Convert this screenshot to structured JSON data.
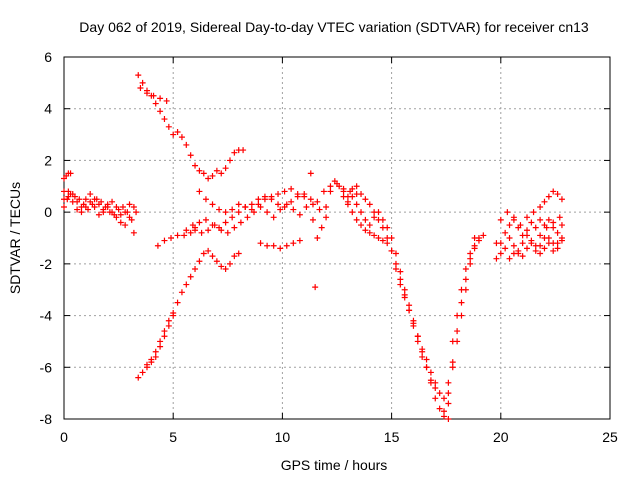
{
  "chart_data": {
    "type": "scatter",
    "title": "Day 062 of 2019, Sidereal Day-to-day VTEC variation (SDTVAR) for receiver cn13",
    "xlabel": "GPS time / hours",
    "ylabel": "SDTVAR / TECUs",
    "xlim": [
      0,
      25
    ],
    "ylim": [
      -8,
      6
    ],
    "xticks": [
      "0",
      "5",
      "10",
      "15",
      "20",
      "25"
    ],
    "yticks": [
      "6",
      "4",
      "2",
      "0",
      "-2",
      "-4",
      "-6",
      "-8"
    ],
    "xtick_values": [
      0,
      5,
      10,
      15,
      20,
      25
    ],
    "ytick_values": [
      6,
      4,
      2,
      0,
      -2,
      -4,
      -6,
      -8
    ],
    "grid": true,
    "marker": "+",
    "color": "#ff0000",
    "series": [
      {
        "x": [
          0.0,
          0.15,
          0.3,
          0.5,
          0.7,
          0.9,
          1.1,
          1.3,
          1.5,
          1.7,
          1.9,
          2.1,
          2.3,
          2.5,
          2.7,
          2.9,
          3.1,
          3.3
        ],
        "y": [
          0.2,
          0.5,
          0.7,
          0.6,
          0.5,
          0.3,
          0.1,
          0.3,
          0.5,
          0.4,
          0.2,
          0.0,
          -0.1,
          0.1,
          0.2,
          0.0,
          -0.3,
          0.0
        ]
      },
      {
        "x": [
          0.0,
          0.2,
          0.4,
          0.6,
          0.8,
          1.0,
          1.2,
          1.4,
          1.6,
          1.8,
          2.0,
          2.2,
          2.4,
          2.6,
          2.8,
          3.0,
          3.2
        ],
        "y": [
          0.5,
          0.8,
          0.7,
          0.4,
          0.2,
          0.5,
          0.7,
          0.5,
          0.3,
          0.1,
          0.3,
          0.4,
          0.2,
          -0.1,
          0.0,
          0.3,
          0.2
        ]
      },
      {
        "x": [
          0.0,
          0.2,
          0.4,
          0.6,
          0.8,
          1.0,
          1.2,
          1.4,
          1.6,
          1.8,
          2.0,
          2.2,
          2.4,
          2.6,
          2.8,
          3.0,
          3.2
        ],
        "y": [
          0.8,
          0.6,
          0.4,
          0.1,
          0.0,
          0.2,
          0.4,
          0.2,
          -0.1,
          0.0,
          0.2,
          0.0,
          -0.2,
          -0.4,
          -0.5,
          -0.2,
          -0.8
        ]
      },
      {
        "x": [
          0.0,
          0.1,
          0.2,
          0.3
        ],
        "y": [
          1.3,
          1.4,
          1.5,
          1.5
        ]
      },
      {
        "x": [
          3.4,
          3.6,
          3.8,
          4.0,
          4.2,
          4.4,
          4.6,
          4.8,
          5.0,
          5.2,
          5.4,
          5.6,
          5.8,
          6.0,
          6.2,
          6.4,
          6.6,
          6.8,
          7.0,
          7.2,
          7.4,
          7.6,
          7.8,
          8.0,
          8.2
        ],
        "y": [
          5.3,
          5.0,
          4.7,
          4.5,
          4.2,
          3.9,
          3.6,
          3.3,
          3.0,
          3.1,
          2.9,
          2.6,
          2.2,
          1.8,
          1.6,
          1.5,
          1.3,
          1.4,
          1.6,
          1.5,
          1.7,
          2.0,
          2.3,
          2.4,
          2.4
        ]
      },
      {
        "x": [
          3.5,
          3.8,
          4.1,
          4.4,
          4.7
        ],
        "y": [
          4.8,
          4.6,
          4.5,
          4.4,
          4.3
        ]
      },
      {
        "x": [
          4.3,
          4.6,
          4.9,
          5.2,
          5.5,
          5.8,
          6.0
        ],
        "y": [
          -1.3,
          -1.1,
          -1.0,
          -0.9,
          -0.9,
          -0.8,
          -0.7
        ]
      },
      {
        "x": [
          3.4,
          3.6,
          3.8,
          4.0,
          4.2,
          4.4,
          4.6,
          4.8,
          5.0,
          5.2,
          5.4,
          5.6,
          5.8,
          6.0,
          6.2,
          6.4,
          6.6,
          6.8,
          7.0,
          7.2,
          7.4,
          7.6,
          7.8,
          8.0
        ],
        "y": [
          -6.4,
          -6.2,
          -5.9,
          -5.7,
          -5.4,
          -5.0,
          -4.6,
          -4.2,
          -3.9,
          -3.5,
          -3.1,
          -2.8,
          -2.5,
          -2.2,
          -1.9,
          -1.6,
          -1.5,
          -1.7,
          -1.9,
          -2.1,
          -2.2,
          -2.0,
          -1.7,
          -1.6
        ]
      },
      {
        "x": [
          3.8,
          4.0,
          4.2,
          4.4,
          4.6,
          4.8,
          5.0
        ],
        "y": [
          -6.0,
          -5.8,
          -5.6,
          -5.2,
          -4.8,
          -4.4,
          -4.0
        ]
      },
      {
        "x": [
          6.2,
          6.5,
          6.8,
          7.1,
          7.4,
          7.7,
          8.0,
          8.3,
          8.6,
          8.9,
          9.2,
          9.5,
          9.8,
          10.1,
          10.4,
          10.7,
          11.0
        ],
        "y": [
          0.8,
          0.5,
          0.3,
          0.1,
          0.0,
          0.1,
          0.3,
          0.2,
          0.1,
          0.3,
          0.5,
          0.6,
          0.7,
          0.8,
          0.9,
          0.7,
          0.6
        ]
      },
      {
        "x": [
          5.6,
          5.9,
          6.2,
          6.5,
          6.8,
          7.1,
          7.4,
          7.7,
          8.0,
          8.3,
          8.6,
          8.9,
          9.2,
          9.5,
          9.8,
          10.1,
          10.4,
          10.7,
          11.0,
          11.3,
          11.6,
          11.9,
          12.2,
          12.5,
          12.8,
          13.1,
          13.4
        ],
        "y": [
          -0.7,
          -0.5,
          -0.4,
          -0.3,
          -0.5,
          -0.6,
          -0.4,
          -0.2,
          0.0,
          0.2,
          0.3,
          0.5,
          0.6,
          0.5,
          0.3,
          0.2,
          0.4,
          0.6,
          0.7,
          0.5,
          0.4,
          0.8,
          1.0,
          1.1,
          0.9,
          0.8,
          0.7
        ]
      },
      {
        "x": [
          6.0,
          6.3,
          6.6,
          6.9,
          7.2,
          7.5,
          7.8,
          8.1,
          8.4,
          8.7,
          9.0,
          9.3,
          9.6,
          9.9,
          10.2,
          10.5,
          10.8,
          11.1,
          11.4,
          11.7,
          12.0
        ],
        "y": [
          -0.6,
          -0.8,
          -0.7,
          -0.5,
          -0.7,
          -0.8,
          -0.6,
          -0.4,
          -0.2,
          0.0,
          0.2,
          0.0,
          -0.2,
          0.1,
          0.3,
          0.1,
          -0.1,
          0.2,
          0.3,
          0.1,
          -0.2
        ]
      },
      {
        "x": [
          9.0,
          9.3,
          9.6,
          9.9,
          10.2,
          10.5,
          10.8
        ],
        "y": [
          -1.2,
          -1.3,
          -1.3,
          -1.4,
          -1.3,
          -1.2,
          -1.1
        ]
      },
      {
        "x": [
          11.3,
          11.4,
          11.5
        ],
        "y": [
          1.5,
          -0.3,
          -2.9
        ]
      },
      {
        "x": [
          11.6,
          11.8,
          12.0,
          12.2,
          12.4,
          12.6,
          12.8,
          13.0,
          13.2,
          13.4,
          13.6,
          13.8,
          14.0,
          14.2,
          14.4,
          14.6,
          14.8,
          15.0,
          15.2,
          15.4,
          15.6,
          15.8,
          16.0,
          16.2,
          16.4,
          16.6,
          16.8,
          17.0,
          17.2,
          17.4,
          17.6
        ],
        "y": [
          -1.0,
          -0.6,
          0.2,
          0.8,
          1.2,
          1.0,
          0.8,
          0.6,
          0.9,
          1.0,
          0.7,
          0.5,
          0.3,
          0.0,
          -0.3,
          -0.6,
          -1.0,
          -1.5,
          -2.2,
          -2.8,
          -3.3,
          -3.8,
          -4.3,
          -4.8,
          -5.4,
          -6.0,
          -6.6,
          -7.2,
          -7.6,
          -7.9,
          -8.0
        ]
      },
      {
        "x": [
          12.8,
          13.0,
          13.2,
          13.4,
          13.6,
          13.8,
          14.0,
          14.2,
          14.4,
          14.6,
          14.8,
          15.0,
          15.2,
          15.4,
          15.6,
          15.8,
          16.0,
          16.2,
          16.4,
          16.6,
          16.8,
          17.0,
          17.2,
          17.4,
          17.6
        ],
        "y": [
          0.6,
          0.3,
          0.0,
          -0.3,
          -0.5,
          -0.7,
          -0.8,
          -0.9,
          -1.0,
          -1.1,
          -1.2,
          -1.5,
          -2.0,
          -2.6,
          -3.2,
          -3.8,
          -4.4,
          -5.0,
          -5.6,
          -6.0,
          -6.5,
          -6.8,
          -7.0,
          -7.2,
          -7.4
        ]
      },
      {
        "x": [
          13.0,
          13.2,
          13.4,
          13.6,
          13.8,
          14.0,
          14.2,
          14.4,
          14.6,
          14.8,
          15.0,
          15.2,
          15.4,
          15.6,
          15.8,
          16.0,
          16.2,
          16.4,
          16.6,
          16.8,
          17.0
        ],
        "y": [
          0.4,
          0.6,
          0.3,
          0.0,
          -0.3,
          -0.5,
          -0.2,
          0.0,
          -0.3,
          -0.6,
          -1.0,
          -1.6,
          -2.3,
          -3.0,
          -3.6,
          -4.2,
          -4.8,
          -5.3,
          -5.7,
          -6.2,
          -6.6
        ]
      },
      {
        "x": [
          17.4,
          17.6,
          17.8,
          18.0,
          18.2,
          18.4,
          18.6,
          18.8,
          19.0,
          19.2
        ],
        "y": [
          -7.7,
          -7.0,
          -6.0,
          -5.0,
          -4.0,
          -3.0,
          -2.0,
          -1.4,
          -1.0,
          -0.9
        ]
      },
      {
        "x": [
          17.6,
          17.8,
          18.0,
          18.2,
          18.4,
          18.6,
          18.8,
          19.0
        ],
        "y": [
          -6.6,
          -5.8,
          -4.6,
          -3.5,
          -2.6,
          -1.8,
          -1.3,
          -1.1
        ]
      },
      {
        "x": [
          17.8,
          18.0,
          18.2,
          18.4,
          18.6,
          18.8
        ],
        "y": [
          -5.0,
          -4.0,
          -3.0,
          -2.2,
          -1.6,
          -1.0
        ]
      },
      {
        "x": [
          19.8,
          20.0,
          20.2,
          20.4,
          20.6,
          20.8,
          21.0,
          21.2,
          21.4,
          21.6,
          21.8,
          22.0,
          22.2,
          22.4,
          22.6,
          22.8
        ],
        "y": [
          -1.8,
          -1.2,
          -0.8,
          -0.5,
          -0.3,
          -0.6,
          -0.9,
          -0.7,
          -0.4,
          -0.6,
          -0.9,
          -0.5,
          -0.3,
          -0.6,
          -0.8,
          -0.5
        ]
      },
      {
        "x": [
          19.8,
          20.0,
          20.2,
          20.4,
          20.6,
          20.8,
          21.0,
          21.2,
          21.4,
          21.6,
          21.8,
          22.0,
          22.2,
          22.4,
          22.6,
          22.8
        ],
        "y": [
          -1.2,
          -1.6,
          -1.4,
          -1.0,
          -1.3,
          -1.6,
          -1.2,
          -0.9,
          -1.2,
          -1.5,
          -1.3,
          -1.0,
          -1.2,
          -1.5,
          -1.2,
          -1.0
        ]
      },
      {
        "x": [
          20.0,
          20.3,
          20.6,
          20.9,
          21.2,
          21.5,
          21.8,
          22.1,
          22.4,
          22.7
        ],
        "y": [
          -0.3,
          0.0,
          -0.2,
          -0.5,
          -0.2,
          0.0,
          -0.3,
          -0.6,
          -0.4,
          -0.2
        ]
      },
      {
        "x": [
          21.8,
          22.0,
          22.2,
          22.4,
          22.6,
          22.8
        ],
        "y": [
          0.2,
          0.4,
          0.6,
          0.8,
          0.7,
          0.5
        ]
      },
      {
        "x": [
          20.4,
          20.6,
          20.8,
          21.0,
          21.2,
          21.4,
          21.6,
          21.8,
          22.0,
          22.2,
          22.4,
          22.6,
          22.8
        ],
        "y": [
          -1.8,
          -1.6,
          -1.5,
          -1.7,
          -1.4,
          -1.1,
          -1.3,
          -1.6,
          -1.4,
          -1.0,
          -1.2,
          -1.4,
          -1.1
        ]
      }
    ]
  }
}
